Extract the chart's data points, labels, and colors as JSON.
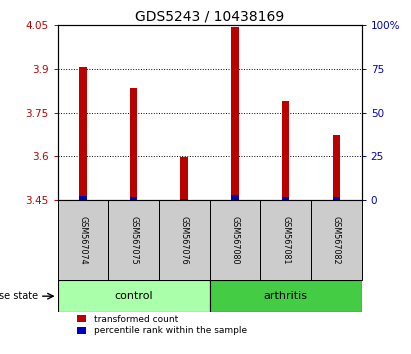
{
  "title": "GDS5243 / 10438169",
  "samples": [
    "GSM567074",
    "GSM567075",
    "GSM567076",
    "GSM567080",
    "GSM567081",
    "GSM567082"
  ],
  "red_values": [
    3.905,
    3.835,
    3.598,
    4.043,
    3.79,
    3.672
  ],
  "blue_values": [
    3.466,
    3.462,
    3.456,
    3.468,
    3.461,
    3.46
  ],
  "base": 3.45,
  "ylim_left": [
    3.45,
    4.05
  ],
  "ylim_right": [
    0,
    100
  ],
  "yticks_left": [
    3.45,
    3.6,
    3.75,
    3.9,
    4.05
  ],
  "yticks_right": [
    0,
    25,
    50,
    75,
    100
  ],
  "ytick_labels_right": [
    "0",
    "25",
    "50",
    "75",
    "100%"
  ],
  "grid_lines": [
    3.6,
    3.75,
    3.9
  ],
  "control_color": "#AAFFAA",
  "arthritis_color": "#44CC44",
  "bar_bg_color": "#CCCCCC",
  "red_color": "#BB0000",
  "blue_color": "#0000BB",
  "title_fontsize": 10,
  "tick_fontsize": 7.5,
  "bar_width": 0.15,
  "disease_state_label": "disease state",
  "control_label": "control",
  "arthritis_label": "arthritis",
  "legend_red": "transformed count",
  "legend_blue": "percentile rank within the sample"
}
